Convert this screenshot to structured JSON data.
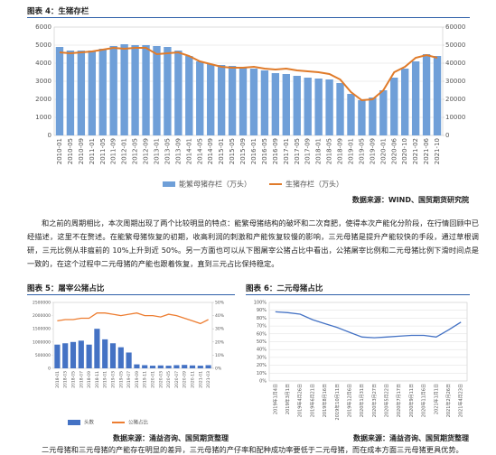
{
  "chart_data": [
    {
      "type": "combo",
      "title": "图表 4：生猪存栏",
      "source": "数据来源：WIND、国贸期货研究院",
      "categories": [
        "2010-01",
        "2010-05",
        "2010-09",
        "2011-01",
        "2011-05",
        "2011-09",
        "2012-01",
        "2012-05",
        "2012-09",
        "2013-01",
        "2013-05",
        "2013-09",
        "2014-01",
        "2014-05",
        "2014-09",
        "2015-01",
        "2015-05",
        "2015-09",
        "2016-01",
        "2016-05",
        "2016-09",
        "2017-01",
        "2017-05",
        "2017-09",
        "2018-01",
        "2018-05",
        "2018-09",
        "2019-01",
        "2019-05",
        "2019-09",
        "2020-01",
        "2020-06",
        "2020-10",
        "2021-02",
        "2021-06",
        "2021-10"
      ],
      "series": [
        {
          "name": "能繁母猪存栏（万头）",
          "mark": "bar",
          "color": "#6f9fd8",
          "axis": "y",
          "values": [
            4900,
            4700,
            4700,
            4700,
            4800,
            4950,
            5050,
            5000,
            5000,
            4950,
            4900,
            4700,
            4400,
            4100,
            3950,
            3900,
            3850,
            3800,
            3700,
            3600,
            3450,
            3400,
            3300,
            3200,
            3150,
            3100,
            2900,
            2300,
            1950,
            2100,
            2500,
            3200,
            3700,
            4100,
            4500,
            4400
          ]
        },
        {
          "name": "生猪存栏（万头）",
          "mark": "line",
          "color": "#e07b2a",
          "axis": "y2",
          "values": [
            46000,
            45500,
            46000,
            46500,
            47500,
            48500,
            48000,
            48500,
            48500,
            45000,
            45500,
            46000,
            44000,
            41000,
            39500,
            38000,
            37500,
            37500,
            38000,
            37000,
            36500,
            37000,
            36000,
            35500,
            35000,
            34000,
            31000,
            24000,
            19500,
            20000,
            25000,
            35000,
            38000,
            43000,
            44500,
            43000
          ]
        }
      ],
      "ylim": [
        0,
        6000
      ],
      "yticks": [
        0,
        1000,
        2000,
        3000,
        4000,
        5000,
        6000
      ],
      "y2lim": [
        0,
        60000
      ],
      "y2ticks": [
        0,
        10000,
        20000,
        30000,
        40000,
        50000,
        60000
      ],
      "grid": true
    },
    {
      "type": "combo",
      "title": "图表 5：屠宰公猪占比",
      "source": "数据来源：涌益咨询、国贸期货整理",
      "categories": [
        "2018-01",
        "2018-03",
        "2018-05",
        "2018-07",
        "2018-09",
        "2018-11",
        "2019-01",
        "2019-03",
        "2019-05",
        "2019-07",
        "2019-09",
        "2019-11",
        "2020-01",
        "2020-03",
        "2020-05",
        "2020-07",
        "2020-09",
        "2020-11",
        "2021-01",
        "2021-03"
      ],
      "series": [
        {
          "name": "头数",
          "mark": "bar",
          "color": "#4472c4",
          "axis": "y",
          "values": [
            900000,
            950000,
            1000000,
            1050000,
            900000,
            1500000,
            1100000,
            950000,
            800000,
            600000,
            150000,
            120000,
            100000,
            110000,
            100000,
            120000,
            130000,
            110000,
            100000,
            120000
          ]
        },
        {
          "name": "公猪占比",
          "mark": "line",
          "color": "#ed7d31",
          "axis": "y2",
          "values": [
            36,
            37,
            37,
            38,
            38,
            42,
            42,
            41,
            40,
            41,
            42,
            40,
            40,
            39,
            41,
            40,
            38,
            36,
            34,
            37
          ]
        }
      ],
      "ylim": [
        0,
        2500000
      ],
      "yticks": [
        0,
        500000,
        1000000,
        1500000,
        2000000,
        2500000
      ],
      "y2lim": [
        0,
        50
      ],
      "y2ticks": [
        {
          "value": 0,
          "label": "0%"
        },
        {
          "value": 10,
          "label": "10%"
        },
        {
          "value": 20,
          "label": "20%"
        },
        {
          "value": 30,
          "label": "30%"
        },
        {
          "value": 40,
          "label": "40%"
        },
        {
          "value": 50,
          "label": "50%"
        }
      ],
      "grid": false
    },
    {
      "type": "line",
      "title": "图表 6：二元母猪占比",
      "source": "数据来源：涌益咨询、国贸期货整理",
      "categories": [
        "2019年1月4日",
        "2019年3月1日",
        "2019年4月26日",
        "2019年6月21日",
        "2019年8月16日",
        "2019年10月11日",
        "2019年12月6日",
        "2020年1月31日",
        "2020年3月27日",
        "2020年5月22日",
        "2020年7月17日",
        "2020年9月11日",
        "2020年11月6日",
        "2021年1月1日",
        "2021年2月26日",
        "2021年4月23日"
      ],
      "series": [
        {
          "name": "二元母猪占比",
          "mark": "line",
          "color": "#4472c4",
          "axis": "y",
          "values": [
            88,
            87,
            85,
            78,
            73,
            68,
            62,
            56,
            55,
            56,
            57,
            58,
            58,
            56,
            65,
            75
          ]
        }
      ],
      "ylim": [
        0,
        100
      ],
      "yticks": [
        {
          "value": 0,
          "label": "0%"
        },
        {
          "value": 10,
          "label": "10%"
        },
        {
          "value": 20,
          "label": "20%"
        },
        {
          "value": 30,
          "label": "30%"
        },
        {
          "value": 40,
          "label": "40%"
        },
        {
          "value": 50,
          "label": "50%"
        },
        {
          "value": 60,
          "label": "60%"
        },
        {
          "value": 70,
          "label": "70%"
        },
        {
          "value": 80,
          "label": "80%"
        },
        {
          "value": 90,
          "label": "90%"
        },
        {
          "value": 100,
          "label": "100%"
        }
      ],
      "grid": true
    }
  ],
  "paragraph": "和之前的周期相比，本次周期出现了两个比较明显的特点：能繁母猪结构的破坏和二次育肥，使得本次产能化分阶段，在行情回顾中已经描述，这里不在赘述。在能繁母猪恢复的初期，收高利润的刺激和产能恢复较慢的影响，三元母猪是提升产能较快的手段，通过草根调研，三元比例从非瘟前的 10%上升到近 50%。另一方面也可以从下图屠宰公猪占比中看出，公猪屠宰比例和二元母猪比例下滑时间点是一致的，在这个过程中二元母猪的产能也跟着恢复，直到三元占比保持稳定。",
  "footer_text": "二元母猪和三元母猪的产能存在明显的差异，三元母猪的产仔率和配种成功率要低于二元母猪，而在成本方面三元母猪更具优势。"
}
